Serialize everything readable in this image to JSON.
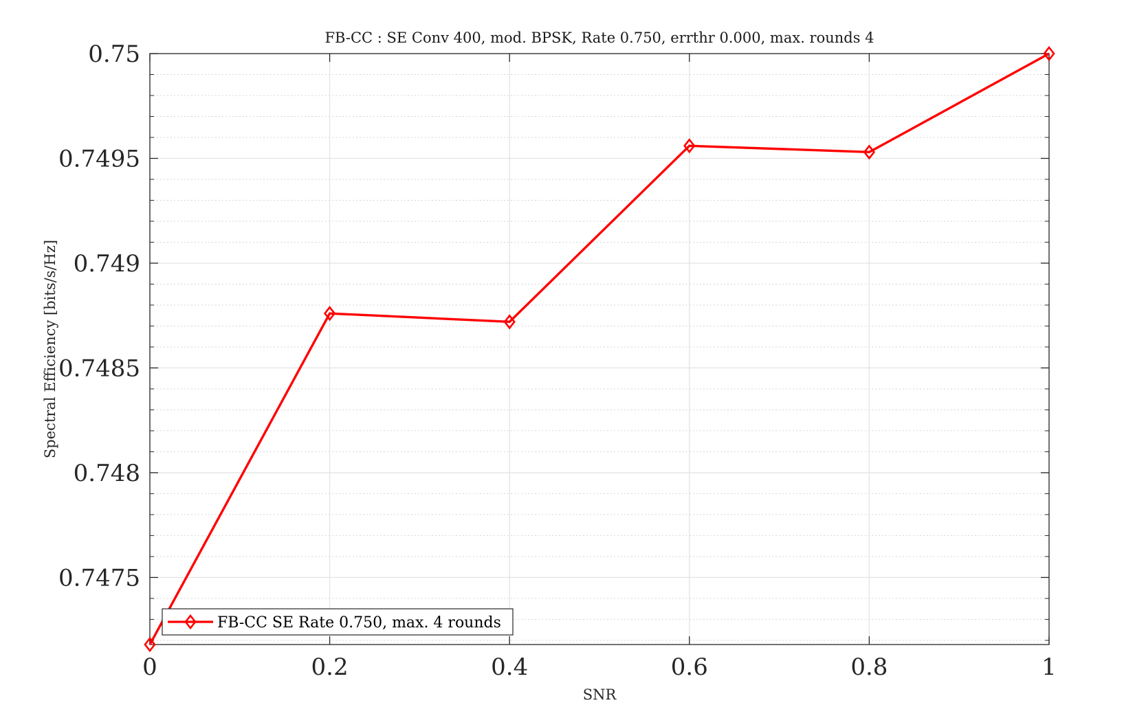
{
  "chart_data": {
    "type": "line",
    "title": "FB-CC : SE Conv 400, mod. BPSK, Rate 0.750, errthr 0.000, max. rounds 4",
    "xlabel": "SNR",
    "ylabel": "Spectral Efficiency [bits/s/Hz]",
    "xlim": [
      0,
      1
    ],
    "ylim": [
      0.74718,
      0.75
    ],
    "xticks": [
      0,
      0.2,
      0.4,
      0.6,
      0.8,
      1
    ],
    "xtick_labels": [
      "0",
      "0.2",
      "0.4",
      "0.6",
      "0.8",
      "1"
    ],
    "yticks": [
      0.7475,
      0.748,
      0.7485,
      0.749,
      0.7495,
      0.75
    ],
    "ytick_labels": [
      "0.7475",
      "0.748",
      "0.7485",
      "0.749",
      "0.7495",
      "0.75"
    ],
    "grid": true,
    "minor_grid": true,
    "legend_position": "bottom-left",
    "series": [
      {
        "name": "FB-CC SE Rate 0.750, max. 4 rounds",
        "color": "#ff0000",
        "marker": "diamond",
        "x": [
          0,
          0.2,
          0.4,
          0.6,
          0.8,
          1
        ],
        "y": [
          0.74718,
          0.74876,
          0.74872,
          0.74956,
          0.74953,
          0.75
        ]
      }
    ]
  }
}
